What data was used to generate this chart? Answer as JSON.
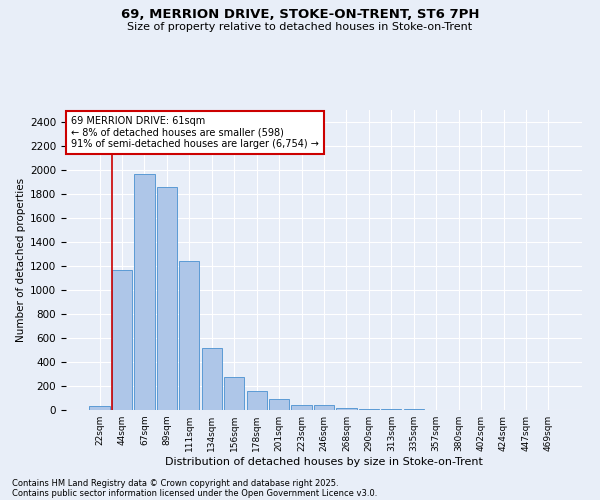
{
  "title1": "69, MERRION DRIVE, STOKE-ON-TRENT, ST6 7PH",
  "title2": "Size of property relative to detached houses in Stoke-on-Trent",
  "xlabel": "Distribution of detached houses by size in Stoke-on-Trent",
  "ylabel": "Number of detached properties",
  "categories": [
    "22sqm",
    "44sqm",
    "67sqm",
    "89sqm",
    "111sqm",
    "134sqm",
    "156sqm",
    "178sqm",
    "201sqm",
    "223sqm",
    "246sqm",
    "268sqm",
    "290sqm",
    "313sqm",
    "335sqm",
    "357sqm",
    "380sqm",
    "402sqm",
    "424sqm",
    "447sqm",
    "469sqm"
  ],
  "values": [
    30,
    1170,
    1970,
    1860,
    1240,
    520,
    275,
    155,
    95,
    45,
    45,
    20,
    12,
    5,
    5,
    3,
    2,
    2,
    2,
    2,
    2
  ],
  "bar_color": "#aec6e8",
  "bar_edge_color": "#5b9bd5",
  "background_color": "#e8eef8",
  "grid_color": "#ffffff",
  "vline_color": "#cc0000",
  "annotation_line1": "69 MERRION DRIVE: 61sqm",
  "annotation_line2": "← 8% of detached houses are smaller (598)",
  "annotation_line3": "91% of semi-detached houses are larger (6,754) →",
  "annotation_box_color": "#ffffff",
  "annotation_box_edge": "#cc0000",
  "ylim": [
    0,
    2500
  ],
  "yticks": [
    0,
    200,
    400,
    600,
    800,
    1000,
    1200,
    1400,
    1600,
    1800,
    2000,
    2200,
    2400
  ],
  "footer1": "Contains HM Land Registry data © Crown copyright and database right 2025.",
  "footer2": "Contains public sector information licensed under the Open Government Licence v3.0.",
  "figsize": [
    6.0,
    5.0
  ],
  "dpi": 100
}
